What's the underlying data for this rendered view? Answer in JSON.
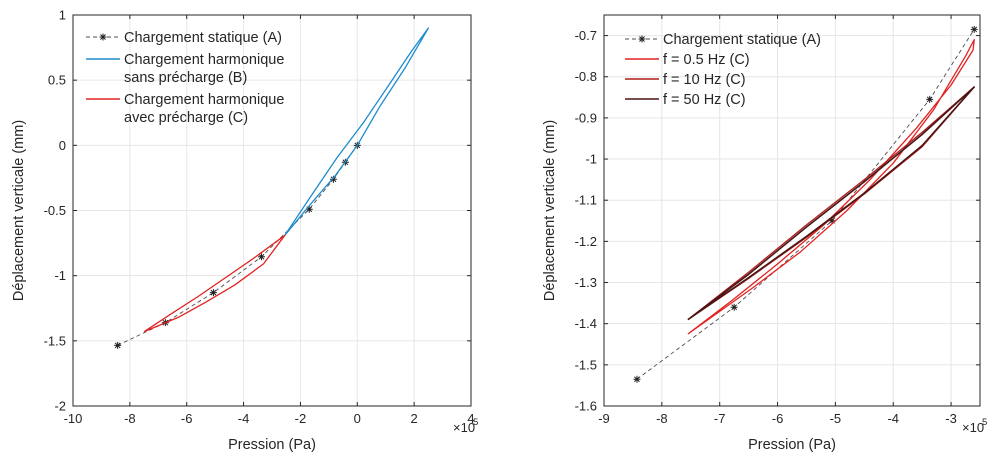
{
  "chart_data": [
    {
      "type": "line",
      "xlabel": "Pression (Pa)",
      "ylabel": "Déplacement verticale (mm)",
      "x_multiplier_label": "×10",
      "x_multiplier_exponent": "5",
      "xlim": [
        -10,
        4
      ],
      "ylim": [
        -2,
        1
      ],
      "xticks": [
        "-10",
        "-8",
        "-6",
        "-4",
        "-2",
        "0",
        "2",
        "4"
      ],
      "yticks": [
        "-2",
        "-1.5",
        "-1",
        "-0.5",
        "0",
        "0.5",
        "1"
      ],
      "grid": true,
      "legend_position": "top-left",
      "series": [
        {
          "name": "Chargement statique (A)",
          "style": "dashed-star",
          "color": "#4d4d4d",
          "x": [
            -8.43,
            -6.75,
            -5.06,
            -3.37,
            -1.69,
            -0.84,
            -0.42,
            0.0
          ],
          "y": [
            -1.535,
            -1.36,
            -1.13,
            -0.855,
            -0.49,
            -0.26,
            -0.13,
            0.0
          ]
        },
        {
          "name": "Chargement harmonique\nsans précharge (B)",
          "style": "loop",
          "color": "#1f8ccc",
          "x": [
            -2.55,
            -1.6,
            -0.7,
            0.2,
            1.1,
            1.9,
            2.5,
            1.7,
            0.8,
            0.0,
            -0.8,
            -1.6,
            -2.55
          ],
          "y": [
            -0.69,
            -0.38,
            -0.09,
            0.17,
            0.46,
            0.72,
            0.9,
            0.6,
            0.3,
            0.0,
            -0.24,
            -0.44,
            -0.69
          ]
        },
        {
          "name": "Chargement harmonique\navec précharge (C)",
          "style": "loop",
          "color": "#e32222",
          "x": [
            -7.5,
            -6.6,
            -5.6,
            -4.6,
            -3.6,
            -2.55,
            -3.3,
            -4.3,
            -5.3,
            -6.3,
            -7.5
          ],
          "y": [
            -1.43,
            -1.3,
            -1.16,
            -1.01,
            -0.86,
            -0.69,
            -0.91,
            -1.07,
            -1.2,
            -1.32,
            -1.43
          ]
        }
      ]
    },
    {
      "type": "line",
      "xlabel": "Pression (Pa)",
      "ylabel": "Déplacement verticale (mm)",
      "x_multiplier_label": "×10",
      "x_multiplier_exponent": "5",
      "xlim": [
        -9,
        -2.5
      ],
      "ylim": [
        -1.6,
        -0.65
      ],
      "xticks": [
        "-9",
        "-8",
        "-7",
        "-6",
        "-5",
        "-4",
        "-3"
      ],
      "yticks": [
        "-1.6",
        "-1.5",
        "-1.4",
        "-1.3",
        "-1.2",
        "-1.1",
        "-1",
        "-0.9",
        "-0.8",
        "-0.7"
      ],
      "grid": true,
      "legend_position": "top-left",
      "series": [
        {
          "name": "Chargement statique (A)",
          "style": "dashed-star",
          "color": "#4d4d4d",
          "x": [
            -8.43,
            -6.75,
            -5.06,
            -3.37,
            -2.6
          ],
          "y": [
            -1.535,
            -1.36,
            -1.15,
            -0.855,
            -0.685
          ]
        },
        {
          "name": "f = 0.5 Hz (C)",
          "style": "loop",
          "color": "#e32222",
          "x": [
            -7.55,
            -6.8,
            -6.0,
            -5.2,
            -4.4,
            -3.6,
            -3.0,
            -2.62,
            -2.6,
            -2.75,
            -3.3,
            -4.0,
            -4.8,
            -5.6,
            -6.4,
            -7.1,
            -7.55
          ],
          "y": [
            -1.425,
            -1.345,
            -1.255,
            -1.16,
            -1.05,
            -0.925,
            -0.82,
            -0.735,
            -0.71,
            -0.75,
            -0.88,
            -1.01,
            -1.125,
            -1.225,
            -1.31,
            -1.38,
            -1.425
          ]
        },
        {
          "name": "f = 10 Hz (C)",
          "style": "loop",
          "color": "#b01c1c",
          "x": [
            -7.55,
            -6.5,
            -5.5,
            -4.5,
            -3.5,
            -2.6,
            -3.5,
            -4.5,
            -5.5,
            -6.5,
            -7.55
          ],
          "y": [
            -1.39,
            -1.29,
            -1.19,
            -1.085,
            -0.97,
            -0.825,
            -0.935,
            -1.05,
            -1.16,
            -1.275,
            -1.39
          ]
        },
        {
          "name": "f = 50 Hz (C)",
          "style": "loop",
          "color": "#4a1515",
          "x": [
            -7.55,
            -6.5,
            -5.5,
            -4.5,
            -3.5,
            -2.6,
            -3.5,
            -4.5,
            -5.5,
            -6.5,
            -7.55
          ],
          "y": [
            -1.39,
            -1.288,
            -1.188,
            -1.083,
            -0.967,
            -0.825,
            -0.94,
            -1.055,
            -1.165,
            -1.28,
            -1.39
          ]
        }
      ]
    }
  ]
}
